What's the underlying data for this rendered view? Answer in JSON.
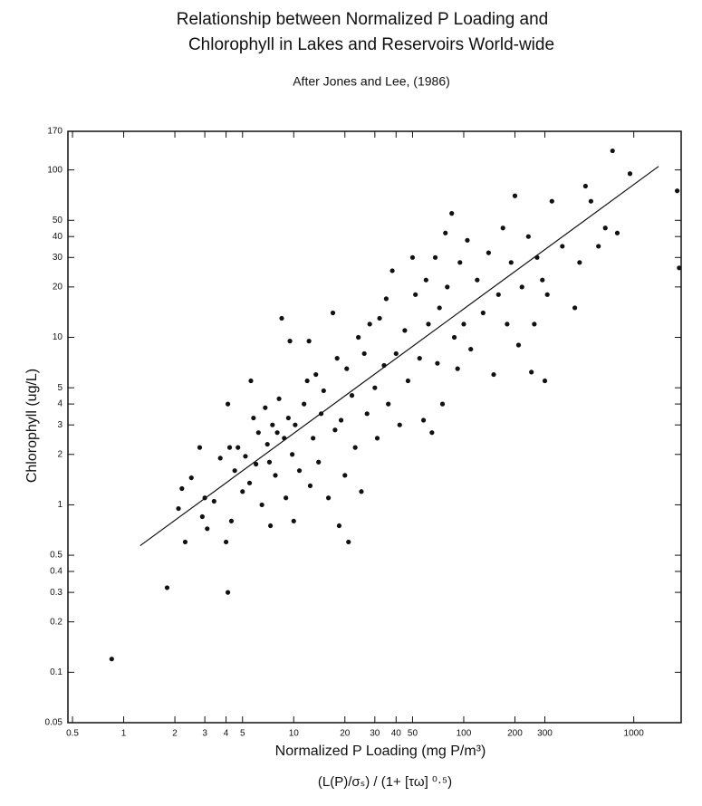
{
  "chart_data": {
    "type": "scatter",
    "title": [
      "Relationship between Normalized P Loading and",
      "Chlorophyll in Lakes and Reservoirs World-wide"
    ],
    "subtitle": "After Jones and Lee, (1986)",
    "x_label": "Normalized P Loading (mg P/m³)",
    "x_formula": "(L(P)/σₛ) / (1+ [τω] ⁰·⁵)",
    "y_label": "Chlorophyll (ug/L)",
    "log_x": true,
    "log_y": true,
    "color": "#111",
    "xlim": [
      0.47,
      1900
    ],
    "ylim": [
      0.05,
      170
    ],
    "xticks": [
      0.5,
      1,
      2,
      3,
      4,
      5,
      10,
      20,
      30,
      40,
      50,
      100,
      200,
      300,
      1000
    ],
    "yticks": [
      0.05,
      0.1,
      0.2,
      0.3,
      0.4,
      0.5,
      1,
      2,
      3,
      4,
      5,
      10,
      20,
      30,
      40,
      50,
      100,
      170
    ],
    "x": [
      0.85,
      1.8,
      2.1,
      2.2,
      2.3,
      2.5,
      2.8,
      2.9,
      3,
      3.1,
      3.4,
      3.7,
      4,
      4.1,
      4.1,
      4.2,
      4.3,
      4.5,
      4.7,
      5,
      5.2,
      5.5,
      5.6,
      5.8,
      6,
      6.2,
      6.5,
      6.8,
      7,
      7.2,
      7.3,
      7.5,
      7.8,
      8,
      8.2,
      8.5,
      8.8,
      9,
      9.3,
      9.5,
      9.8,
      10,
      10.2,
      10.8,
      11.5,
      12,
      12.3,
      12.5,
      13,
      13.5,
      14,
      14.5,
      15,
      16,
      17,
      17.5,
      18,
      18.5,
      19,
      20,
      20.5,
      21,
      22,
      23,
      24,
      25,
      26,
      27,
      28,
      30,
      31,
      32,
      34,
      35,
      36,
      38,
      40,
      42,
      45,
      47,
      50,
      52,
      55,
      58,
      60,
      62,
      65,
      68,
      70,
      72,
      75,
      78,
      80,
      85,
      88,
      92,
      95,
      100,
      105,
      110,
      120,
      130,
      140,
      150,
      160,
      170,
      180,
      190,
      200,
      210,
      220,
      240,
      250,
      260,
      270,
      290,
      300,
      310,
      330,
      380,
      450,
      480,
      520,
      560,
      620,
      680,
      750,
      800,
      950,
      1800,
      1850
    ],
    "y": [
      0.12,
      0.32,
      0.95,
      1.25,
      0.6,
      1.45,
      2.2,
      0.85,
      1.1,
      0.72,
      1.05,
      1.9,
      0.6,
      0.3,
      4,
      2.2,
      0.8,
      1.6,
      2.2,
      1.2,
      1.95,
      1.35,
      5.5,
      3.3,
      1.75,
      2.7,
      1,
      3.8,
      2.3,
      1.8,
      0.75,
      3,
      1.5,
      2.7,
      4.3,
      13,
      2.5,
      1.1,
      3.3,
      9.5,
      2,
      0.8,
      3,
      1.6,
      4,
      5.5,
      9.5,
      1.3,
      2.5,
      6,
      1.8,
      3.5,
      4.8,
      1.1,
      14,
      2.8,
      7.5,
      0.75,
      3.2,
      1.5,
      6.5,
      0.6,
      4.5,
      2.2,
      10,
      1.2,
      8,
      3.5,
      12,
      5,
      2.5,
      13,
      6.8,
      17,
      4,
      25,
      8,
      3,
      11,
      5.5,
      30,
      18,
      7.5,
      3.2,
      22,
      12,
      2.7,
      30,
      7,
      15,
      4,
      42,
      20,
      55,
      10,
      6.5,
      28,
      12,
      38,
      8.5,
      22,
      14,
      32,
      6,
      18,
      45,
      12,
      28,
      70,
      9,
      20,
      40,
      6.2,
      12,
      30,
      22,
      5.5,
      18,
      65,
      35,
      15,
      28,
      80,
      65,
      35,
      45,
      130,
      42,
      95,
      75,
      26
    ],
    "fit": {
      "x": [
        1.25,
        1400
      ],
      "y": [
        0.57,
        105
      ]
    }
  }
}
